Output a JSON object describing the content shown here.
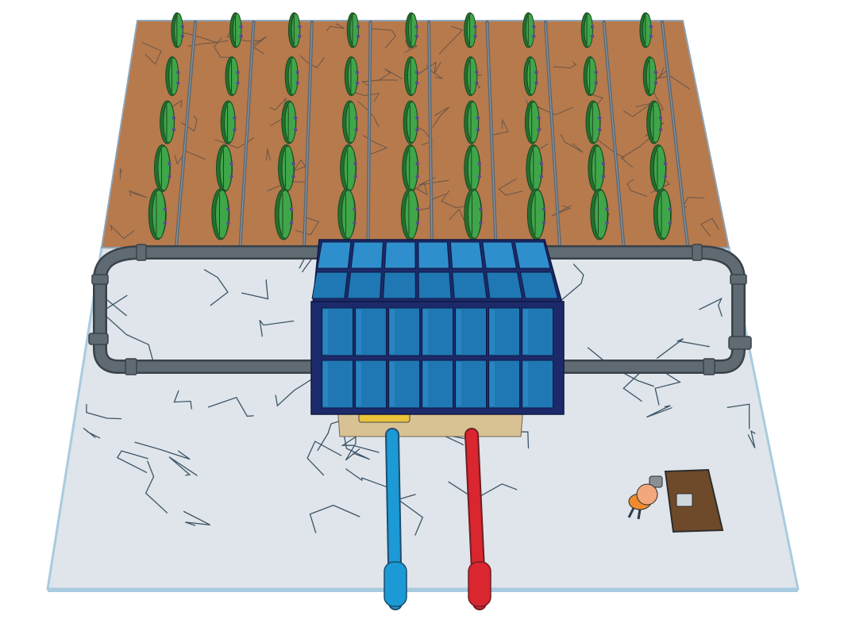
{
  "scene": {
    "type": "3d-model-viewport",
    "elements": [
      "soil-field",
      "crop-rows",
      "irrigation-pipes",
      "concrete-slab",
      "solar-panel-array",
      "equipment-building",
      "blue-pipe",
      "red-pipe",
      "person-figure",
      "desk"
    ],
    "crop_rows": 9,
    "plants_per_row": 5,
    "solar_panel_columns": 7,
    "solar_panel_rows_front": 2,
    "solar_panel_rows_top": 2,
    "colors": {
      "background": "#ffffff",
      "soil": "#b67a4d",
      "soil_edge": "#8fa3b4",
      "crack": "#3d5468",
      "plant": "#3fa64a",
      "plant_dark": "#23702d",
      "drip_line": "#5a6670",
      "pipe": "#5f6a72",
      "pipe_edge": "#3a4248",
      "slab": "#dfe5ea",
      "slab_edge": "#a9cbe0",
      "panel_frame": "#1c2a6b",
      "panel_cell": "#1f78b3",
      "panel_cell_light": "#2f8fcc",
      "building": "#d8c193",
      "blue_pipe": "#1b9ad6",
      "red_pipe": "#d9262f",
      "desk": "#6e4a2a",
      "person_head": "#f2a77c",
      "person_body": "#ef8b2e"
    }
  }
}
